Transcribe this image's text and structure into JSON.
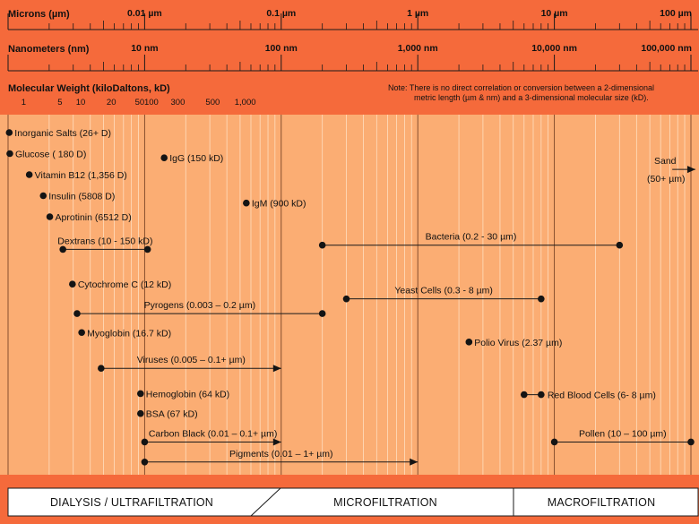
{
  "colors": {
    "background": "#f56a3b",
    "chart_area": "#fbad73",
    "footer_fill": "#ffffff",
    "line": "#1a1a1a",
    "dot": "#141414"
  },
  "scales": {
    "microns": {
      "title": "Microns (µm)",
      "ticks": [
        {
          "value": 0.001,
          "label": ""
        },
        {
          "value": 0.01,
          "label": "0.01 µm"
        },
        {
          "value": 0.1,
          "label": "0.1 µm"
        },
        {
          "value": 1,
          "label": "1 µm"
        },
        {
          "value": 10,
          "label": "10 µm"
        },
        {
          "value": 100,
          "label": "100 µm"
        }
      ]
    },
    "nanometers": {
      "title": "Nanometers (nm)",
      "ticks": [
        {
          "value": 0.001,
          "label": ""
        },
        {
          "value": 0.01,
          "label": "10 nm"
        },
        {
          "value": 0.1,
          "label": "100 nm"
        },
        {
          "value": 1,
          "label": "1,000 nm"
        },
        {
          "value": 10,
          "label": "10,000 nm"
        },
        {
          "value": 100,
          "label": "100,000 nm"
        }
      ]
    },
    "molecular_weight": {
      "title": "Molecular Weight (kiloDaltons, kD)",
      "labels": [
        {
          "value": 0.0013,
          "label": "1"
        },
        {
          "value": 0.0024,
          "label": "5"
        },
        {
          "value": 0.0034,
          "label": "10"
        },
        {
          "value": 0.0057,
          "label": "20"
        },
        {
          "value": 0.0092,
          "label": "50"
        },
        {
          "value": 0.0112,
          "label": "100"
        },
        {
          "value": 0.0175,
          "label": "300"
        },
        {
          "value": 0.0315,
          "label": "500"
        },
        {
          "value": 0.0545,
          "label": "1,000"
        }
      ]
    }
  },
  "note": {
    "lines": [
      "Note:  There is no direct correlation or conversion between a 2-dimensional",
      "metric length (µm & nm) and a 3-dimensional molecular size (kD)."
    ]
  },
  "items": [
    {
      "label": "Inorganic Salts (26+ D)",
      "type": "point",
      "x": 0.00102,
      "row": 0,
      "label_side": "right"
    },
    {
      "label": "Glucose ( 180 D)",
      "type": "point",
      "x": 0.00103,
      "row": 1,
      "label_side": "right"
    },
    {
      "label": "IgG (150 kD)",
      "type": "point",
      "x": 0.0139,
      "row": 1.2,
      "label_side": "right"
    },
    {
      "label": "Vitamin B12 (1,356 D)",
      "type": "point",
      "x": 0.00143,
      "row": 2,
      "label_side": "right"
    },
    {
      "label": "Insulin (5808 D)",
      "type": "point",
      "x": 0.00181,
      "row": 3,
      "label_side": "right"
    },
    {
      "label": "IgM (900 kD)",
      "type": "point",
      "x": 0.0555,
      "row": 3.35,
      "label_side": "right"
    },
    {
      "label": "Aprotinin (6512 D)",
      "type": "point",
      "x": 0.00202,
      "row": 4,
      "label_side": "right"
    },
    {
      "label": "Dextrans (10 - 150 kD)",
      "type": "range",
      "x1": 0.00252,
      "x2": 0.0105,
      "row": 5.55,
      "label_side": "above"
    },
    {
      "label": "Bacteria (0.2 - 30 µm)",
      "type": "range",
      "x1": 0.2,
      "x2": 30,
      "row": 5.35,
      "label_side": "above"
    },
    {
      "label": "Cytochrome C (12 kD)",
      "type": "point",
      "x": 0.00296,
      "row": 7.2,
      "label_side": "right"
    },
    {
      "label": "Yeast Cells (0.3 - 8 µm)",
      "type": "range",
      "x1": 0.3,
      "x2": 8,
      "row": 7.9,
      "label_side": "above"
    },
    {
      "label": "Pyrogens (0.003 – 0.2 µm)",
      "type": "range",
      "x1": 0.0032,
      "x2": 0.2,
      "row": 8.6,
      "label_side": "above"
    },
    {
      "label": "Myoglobin (16.7 kD)",
      "type": "point",
      "x": 0.00346,
      "row": 9.5,
      "label_side": "right"
    },
    {
      "label": "Polio Virus (2.37 µm)",
      "type": "point",
      "x": 2.37,
      "row": 9.95,
      "label_side": "right"
    },
    {
      "label": "Viruses (0.005 – 0.1+ µm)",
      "type": "arrow",
      "x1": 0.0048,
      "x2": 0.1,
      "row": 11.2,
      "label_side": "above"
    },
    {
      "label": "Hemoglobin (64 kD)",
      "type": "point",
      "x": 0.00933,
      "row": 12.4,
      "label_side": "right"
    },
    {
      "label": "Red Blood Cells (6- 8 µm)",
      "type": "range",
      "x1": 6,
      "x2": 8,
      "row": 12.45,
      "label_side": "right"
    },
    {
      "label": "BSA  (67 kD)",
      "type": "point",
      "x": 0.00933,
      "row": 13.35,
      "label_side": "right"
    },
    {
      "label": "Carbon Black (0.01 – 0.1+ µm)",
      "type": "arrow",
      "x1": 0.01,
      "x2": 0.1,
      "row": 14.7,
      "label_side": "above"
    },
    {
      "label": "Pollen (10 – 100 µm)",
      "type": "range",
      "x1": 10,
      "x2": 100,
      "row": 14.7,
      "label_side": "above"
    },
    {
      "label": "Pigments (0.01 – 1+ µm)",
      "type": "arrow",
      "x1": 0.01,
      "x2": 1,
      "row": 15.65,
      "label_side": "above"
    },
    {
      "label": "Sand",
      "type": "arrow",
      "x1": 73,
      "x2": 110,
      "row": 1.75,
      "label_side": "above",
      "sublabel": "(50+ µm)"
    }
  ],
  "footer": {
    "bands": [
      {
        "label": "DIALYSIS / ULTRAFILTRATION"
      },
      {
        "label": "MICROFILTRATION"
      },
      {
        "label": "MACROFILTRATION"
      }
    ]
  }
}
